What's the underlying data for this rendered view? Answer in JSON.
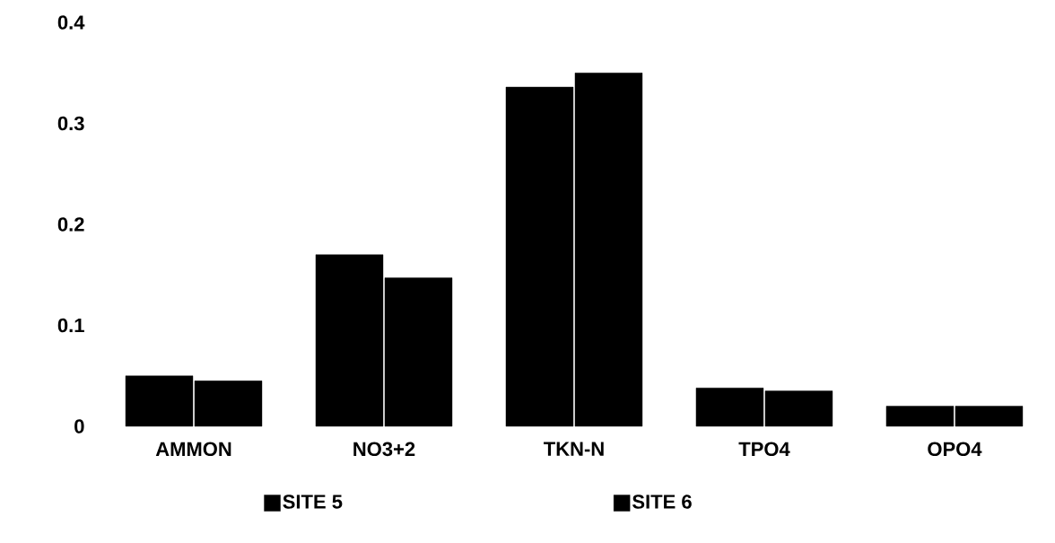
{
  "chart_data": {
    "type": "bar",
    "categories": [
      "AMMON",
      "NO3+2",
      "TKN-N",
      "TPO4",
      "OPO4"
    ],
    "series": [
      {
        "name": "SITE 5",
        "color": "#000000",
        "values": [
          0.05,
          0.17,
          0.336,
          0.038,
          0.02
        ]
      },
      {
        "name": "SITE 6",
        "color": "#000000",
        "values": [
          0.045,
          0.147,
          0.35,
          0.035,
          0.02
        ]
      }
    ],
    "ylim": [
      0,
      0.4
    ],
    "yticks": [
      0,
      0.1,
      0.2,
      0.3,
      0.4
    ],
    "legend": "bottom"
  }
}
